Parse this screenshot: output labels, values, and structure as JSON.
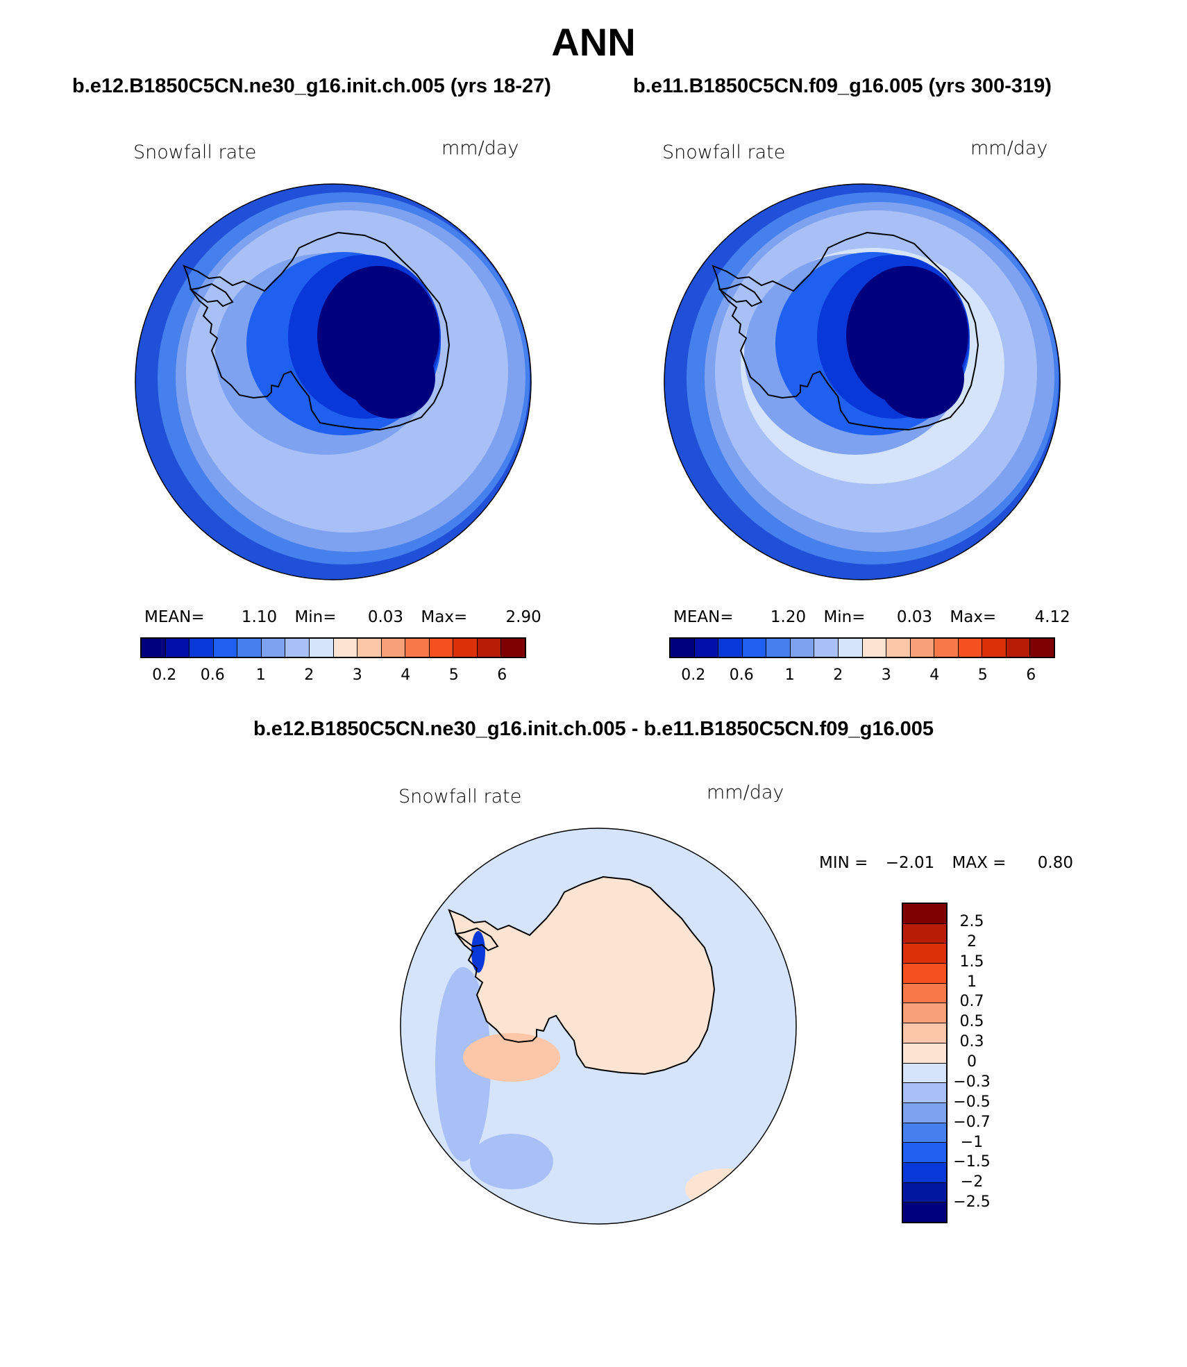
{
  "page": {
    "main_title": "ANN",
    "case1_title": "b.e12.B1850C5CN.ne30_g16.init.ch.005 (yrs 18-27)",
    "case2_title": "b.e11.B1850C5CN.f09_g16.005 (yrs 300-319)",
    "diff_title": "b.e12.B1850C5CN.ne30_g16.init.ch.005 - b.e11.B1850C5CN.f09_g16.005"
  },
  "colors": {
    "abs_palette": [
      "#00007f",
      "#0010a8",
      "#0838d8",
      "#2060f0",
      "#4680ec",
      "#7ea2f0",
      "#a8c0f6",
      "#d6e4fb",
      "#fde4d2",
      "#fcc6a8",
      "#f8a07a",
      "#f77848",
      "#f45020",
      "#dc3008",
      "#b81c04",
      "#7e0000"
    ],
    "diff_palette": [
      "#00007f",
      "#0018a0",
      "#0838d8",
      "#2060f0",
      "#4680ec",
      "#7ea2f0",
      "#a8c0f6",
      "#d6e4fb",
      "#fde4d2",
      "#fcc6a8",
      "#f8a07a",
      "#f77848",
      "#f45020",
      "#dc3008",
      "#b81c04",
      "#7e0000"
    ],
    "ocean_outer": "#2050d8",
    "ocean_mid": "#7ea2f0",
    "ocean_inner": "#a8c0f6",
    "continent_deep": "#00007f",
    "diff_background": "#d6e4fb",
    "diff_positive": "#fde4d2"
  },
  "chart_data": [
    {
      "type": "heatmap",
      "projection": "south-polar-stereographic",
      "case": "b.e12.B1850C5CN.ne30_g16.init.ch.005 (yrs 18-27)",
      "left_label": "Snowfall rate",
      "right_label": "mm/day",
      "stats": {
        "mean_label": "MEAN=",
        "mean": "1.10",
        "min_label": "Min=",
        "min": "0.03",
        "max_label": "Max=",
        "max": "2.90"
      },
      "contour_levels": [
        0.2,
        0.4,
        0.6,
        0.8,
        1,
        1.5,
        2,
        2.5,
        3,
        3.5,
        4,
        4.5,
        5,
        5.5,
        6
      ],
      "colorbar_tick_labels": [
        "0.2",
        "0.6",
        "1",
        "2",
        "3",
        "4",
        "5",
        "6"
      ],
      "legend_position": "bottom"
    },
    {
      "type": "heatmap",
      "projection": "south-polar-stereographic",
      "case": "b.e11.B1850C5CN.f09_g16.005 (yrs 300-319)",
      "left_label": "Snowfall rate",
      "right_label": "mm/day",
      "stats": {
        "mean_label": "MEAN=",
        "mean": "1.20",
        "min_label": "Min=",
        "min": "0.03",
        "max_label": "Max=",
        "max": "4.12"
      },
      "contour_levels": [
        0.2,
        0.4,
        0.6,
        0.8,
        1,
        1.5,
        2,
        2.5,
        3,
        3.5,
        4,
        4.5,
        5,
        5.5,
        6
      ],
      "colorbar_tick_labels": [
        "0.2",
        "0.6",
        "1",
        "2",
        "3",
        "4",
        "5",
        "6"
      ],
      "legend_position": "bottom"
    },
    {
      "type": "heatmap",
      "projection": "south-polar-stereographic",
      "case": "difference",
      "left_label": "Snowfall rate",
      "right_label": "mm/day",
      "stats": {
        "min_label": "MIN =",
        "min": "−2.01",
        "max_label": "MAX =",
        "max": "0.80"
      },
      "contour_levels": [
        -2.5,
        -2,
        -1.5,
        -1,
        -0.7,
        -0.5,
        -0.3,
        0,
        0.3,
        0.5,
        0.7,
        1,
        1.5,
        2,
        2.5
      ],
      "colorbar_tick_labels": [
        "2.5",
        "2",
        "1.5",
        "1",
        "0.7",
        "0.5",
        "0.3",
        "0",
        "−0.3",
        "−0.5",
        "−0.7",
        "−1",
        "−1.5",
        "−2",
        "−2.5"
      ],
      "legend_position": "right"
    }
  ]
}
